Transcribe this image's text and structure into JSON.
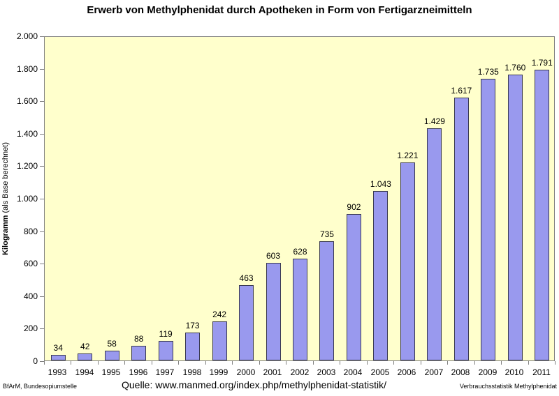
{
  "title": "Erwerb von Methylphenidat durch Apotheken in Form von Fertigarzneimitteln",
  "chart_data": {
    "type": "bar",
    "categories": [
      "1993",
      "1994",
      "1995",
      "1996",
      "1997",
      "1998",
      "1999",
      "2000",
      "2001",
      "2002",
      "2003",
      "2004",
      "2005",
      "2006",
      "2007",
      "2008",
      "2009",
      "2010",
      "2011"
    ],
    "values": [
      34,
      42,
      58,
      88,
      119,
      173,
      242,
      463,
      603,
      628,
      735,
      902,
      1043,
      1221,
      1429,
      1617,
      1735,
      1760,
      1791
    ],
    "value_labels": [
      "34",
      "42",
      "58",
      "88",
      "119",
      "173",
      "242",
      "463",
      "603",
      "628",
      "735",
      "902",
      "1.043",
      "1.221",
      "1.429",
      "1.617",
      "1.735",
      "1.760",
      "1.791"
    ],
    "title": "Erwerb von Methylphenidat durch Apotheken in Form von Fertigarzneimitteln",
    "xlabel": "",
    "ylabel": "Kilogramm (als Base berechnet)",
    "ylabel_bold": "Kilogramm",
    "ylabel_rest": " (als Base berechnet)",
    "ylim": [
      0,
      2000
    ],
    "ytick_step": 200,
    "ytick_labels": [
      "0",
      "200",
      "400",
      "600",
      "800",
      "1.000",
      "1.200",
      "1.400",
      "1.600",
      "1.800",
      "2.000"
    ],
    "grid": false,
    "legend": "none",
    "colors": {
      "plot_bg": "#FFFFCC",
      "bar_fill": "#9999EE",
      "bar_border": "#3A3A52",
      "axis": "#808080",
      "text": "#000000",
      "page_bg": "#FFFFFF"
    }
  },
  "footer": {
    "left": "BfArM, Bundesopiumstelle",
    "center": "Quelle: www.manmed.org/index.php/methylphenidat-statistik/",
    "right": "Verbrauchsstatistik Methylphenidat"
  }
}
